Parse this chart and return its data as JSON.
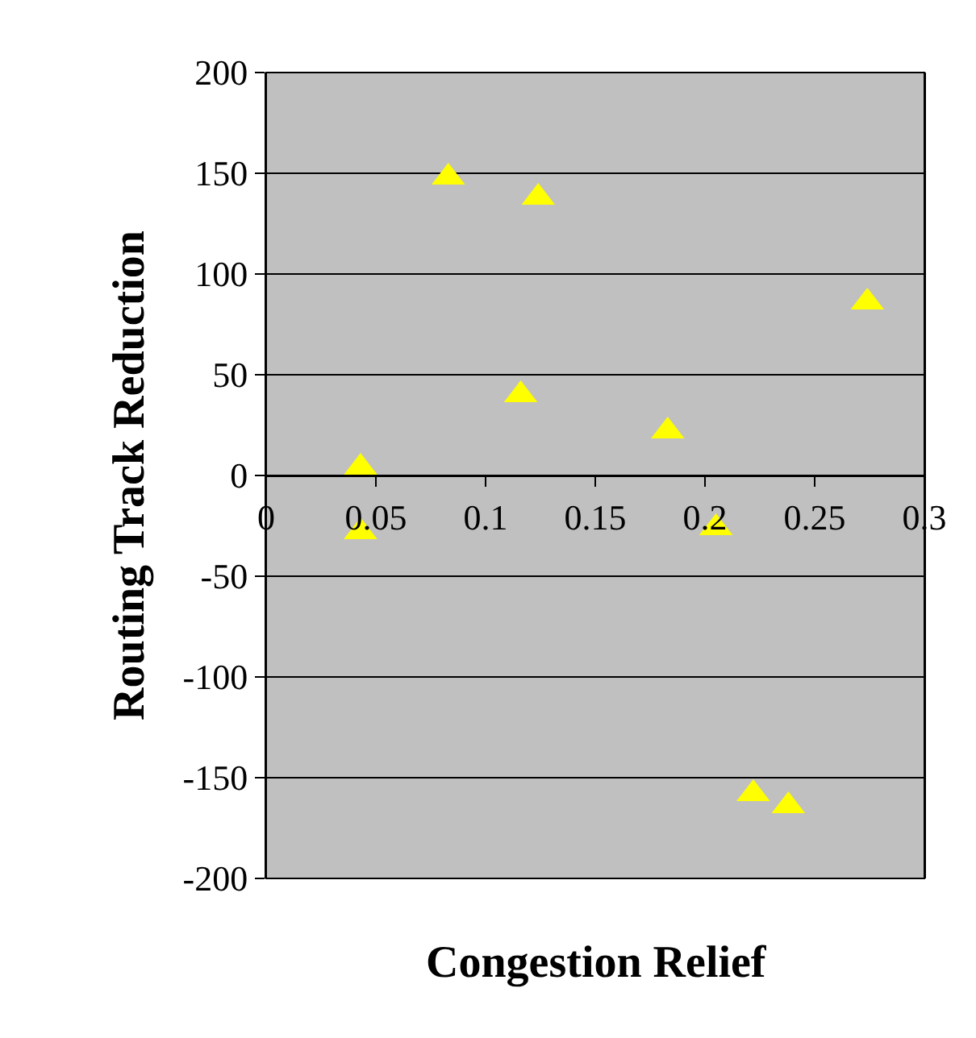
{
  "chart_data": {
    "type": "scatter",
    "xlabel": "Congestion Relief",
    "ylabel": "Routing Track Reduction",
    "x": [
      0.043,
      0.043,
      0.083,
      0.124,
      0.116,
      0.183,
      0.205,
      0.222,
      0.238,
      0.274
    ],
    "series": [
      {
        "color": "#ffff00",
        "values": [
          4,
          -28,
          148,
          138,
          40,
          22,
          -26,
          -158,
          -164,
          86
        ]
      }
    ],
    "marker": "triangle",
    "xlim": [
      0,
      0.3
    ],
    "xticks": [
      0,
      0.05,
      0.1,
      0.15,
      0.2,
      0.25,
      0.3
    ],
    "ylim": [
      -200,
      200
    ],
    "yticks": [
      -200,
      -150,
      -100,
      -50,
      0,
      50,
      100,
      150,
      200
    ],
    "grid": "y",
    "legend": false
  }
}
